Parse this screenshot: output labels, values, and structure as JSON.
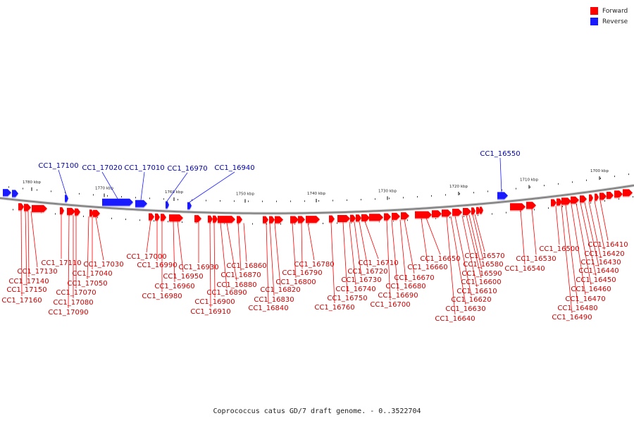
{
  "caption": "Coprococcus catus GD/7 draft genome. - 0..3522704",
  "legend": [
    {
      "label": "Forward",
      "color": "#ff0000"
    },
    {
      "label": "Reverse",
      "color": "#1a1aff"
    }
  ],
  "colors": {
    "forward": "#ff0000",
    "reverse": "#1a1aff",
    "forward_label": "#cc0000",
    "reverse_label": "#0000aa",
    "backbone": "#808080"
  },
  "scale_labels": [
    "1780 kbp",
    "1770 kbp",
    "1760 kbp",
    "1750 kbp",
    "1740 kbp",
    "1730 kbp",
    "1720 kbp",
    "1710 kbp",
    "1700 kbp"
  ],
  "reverse_genes": [
    "CC1_17100",
    "CC1_17020",
    "CC1_17010",
    "CC1_16970",
    "CC1_16940",
    "CC1_16550"
  ],
  "forward_genes": [
    "CC1_17160",
    "CC1_17150",
    "CC1_17140",
    "CC1_17130",
    "CC1_17110",
    "CC1_17090",
    "CC1_17080",
    "CC1_17070",
    "CC1_17050",
    "CC1_17040",
    "CC1_17030",
    "CC1_17000",
    "CC1_16990",
    "CC1_16980",
    "CC1_16960",
    "CC1_16950",
    "CC1_16930",
    "CC1_16910",
    "CC1_16900",
    "CC1_16890",
    "CC1_16880",
    "CC1_16870",
    "CC1_16860",
    "CC1_16840",
    "CC1_16830",
    "CC1_16820",
    "CC1_16800",
    "CC1_16790",
    "CC1_16780",
    "CC1_16760",
    "CC1_16750",
    "CC1_16740",
    "CC1_16730",
    "CC1_16720",
    "CC1_16710",
    "CC1_16700",
    "CC1_16690",
    "CC1_16680",
    "CC1_16670",
    "CC1_16660",
    "CC1_16650",
    "CC1_16640",
    "CC1_16630",
    "CC1_16620",
    "CC1_16610",
    "CC1_16600",
    "CC1_16590",
    "CC1_16580",
    "CC1_16570",
    "CC1_16540",
    "CC1_16530",
    "CC1_16500",
    "CC1_16490",
    "CC1_16480",
    "CC1_16470",
    "CC1_16460",
    "CC1_16450",
    "CC1_16440",
    "CC1_16430",
    "CC1_16420",
    "CC1_16410"
  ]
}
